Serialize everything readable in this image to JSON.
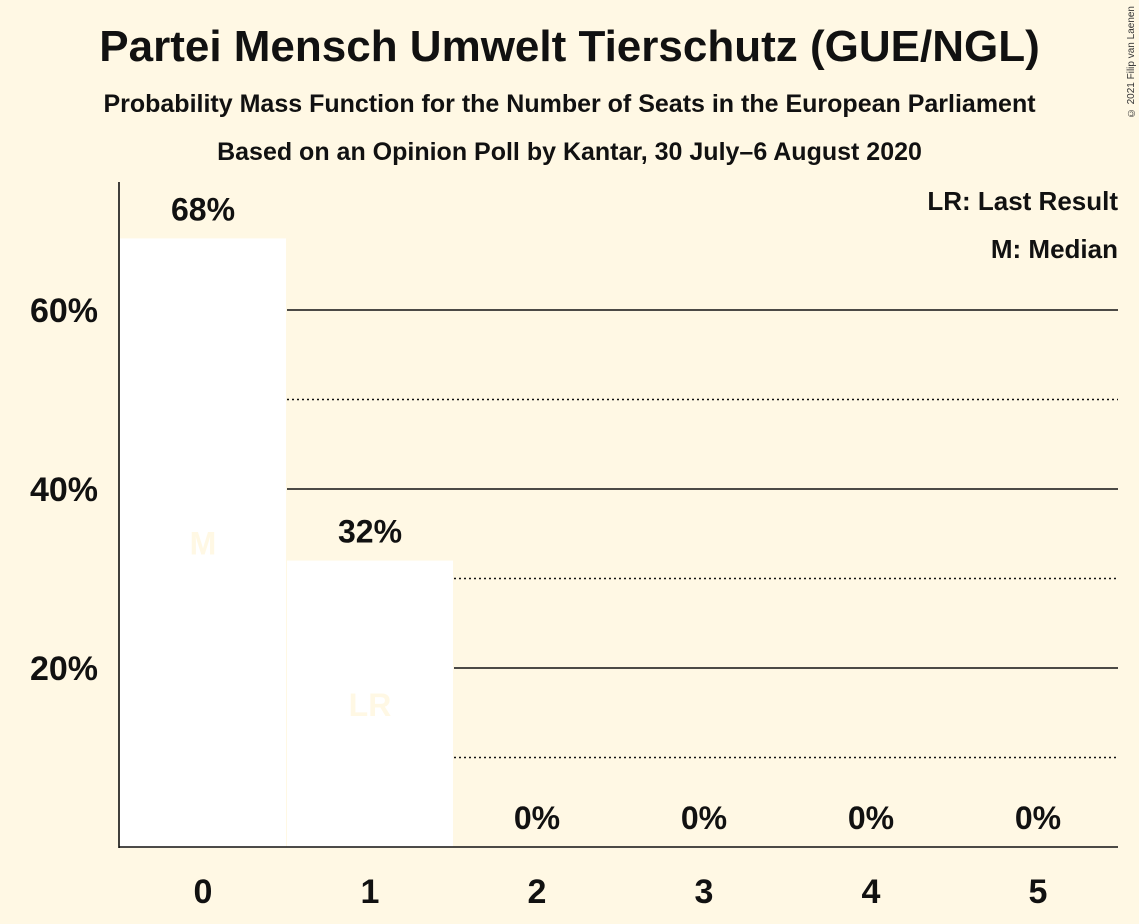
{
  "chart_data": {
    "type": "bar",
    "title": "Partei Mensch Umwelt Tierschutz (GUE/NGL)",
    "subtitle": "Probability Mass Function for the Number of Seats in the European Parliament",
    "subtitle2": "Based on an Opinion Poll by Kantar, 30 July–6 August 2020",
    "copyright": "© 2021 Filip van Laenen",
    "categories": [
      "0",
      "1",
      "2",
      "3",
      "4",
      "5"
    ],
    "values": [
      68,
      32,
      0,
      0,
      0,
      0
    ],
    "value_labels": [
      "68%",
      "32%",
      "0%",
      "0%",
      "0%",
      "0%"
    ],
    "y_ticks": [
      20,
      40,
      60
    ],
    "y_tick_labels": [
      "20%",
      "40%",
      "60%"
    ],
    "ylim": [
      0,
      74
    ],
    "grid": true,
    "bar_markers": [
      {
        "category": "0",
        "label": "M"
      },
      {
        "category": "1",
        "label": "LR"
      }
    ],
    "legend": [
      "LR: Last Result",
      "M: Median"
    ],
    "legend_position": "top-right",
    "colors": {
      "background": "#fff8e4",
      "bar": "#ffffff",
      "marker_text": "#fff8e4",
      "text": "#111111"
    }
  }
}
